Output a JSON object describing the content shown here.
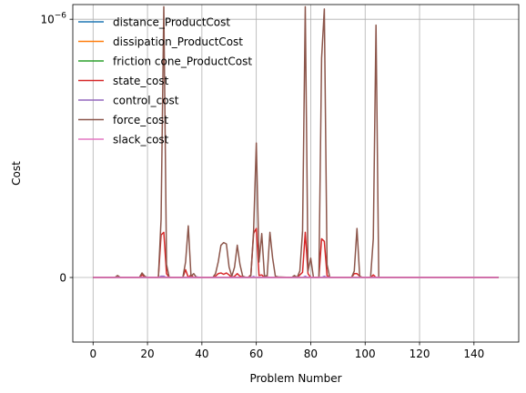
{
  "chart_data": {
    "type": "line",
    "xlabel": "Problem Number",
    "ylabel": "Cost",
    "xlim": [
      -7.45,
      156.45
    ],
    "ylim": [
      -5e-08,
      1.3e-06
    ],
    "yscale": "symlog",
    "linthresh": 1e-07,
    "grid": true,
    "legend_position": "top-left",
    "x_ticks": [
      0,
      20,
      40,
      60,
      80,
      100,
      120,
      140
    ],
    "x_tick_labels": [
      "0",
      "20",
      "40",
      "60",
      "80",
      "100",
      "120",
      "140"
    ],
    "y_ticks": [
      0,
      1e-06
    ],
    "y_tick_labels": [
      "0",
      "10^-6"
    ],
    "x_range": [
      0,
      149
    ],
    "series": [
      {
        "name": "distance_ProductCost",
        "color": "#1f77b4",
        "points": [
          [
            0,
            0
          ],
          [
            149,
            0
          ]
        ]
      },
      {
        "name": "dissipation_ProductCost",
        "color": "#ff7f0e",
        "points": [
          [
            0,
            0
          ],
          [
            149,
            0
          ]
        ]
      },
      {
        "name": "friction cone_ProductCost",
        "color": "#2ca02c",
        "points": [
          [
            0,
            0
          ],
          [
            149,
            0
          ]
        ]
      },
      {
        "name": "state_cost",
        "color": "#d62728",
        "points": [
          [
            0,
            0
          ],
          [
            8,
            0
          ],
          [
            9,
            6e-10
          ],
          [
            10,
            0
          ],
          [
            17,
            0
          ],
          [
            18,
            2e-09
          ],
          [
            19,
            5e-10
          ],
          [
            20,
            0
          ],
          [
            24,
            0
          ],
          [
            25,
            3.3e-08
          ],
          [
            26,
            3.5e-08
          ],
          [
            27,
            3e-09
          ],
          [
            28,
            0
          ],
          [
            33,
            0
          ],
          [
            34,
            6e-09
          ],
          [
            35,
            0
          ],
          [
            36,
            2e-09
          ],
          [
            37,
            0
          ],
          [
            44,
            0
          ],
          [
            45,
            1e-09
          ],
          [
            46,
            3e-09
          ],
          [
            47,
            3.5e-09
          ],
          [
            48,
            2.5e-09
          ],
          [
            49,
            3.5e-09
          ],
          [
            50,
            2e-09
          ],
          [
            51,
            0
          ],
          [
            52,
            1e-09
          ],
          [
            53,
            3e-09
          ],
          [
            54,
            1e-09
          ],
          [
            55,
            6e-10
          ],
          [
            56,
            2e-10
          ],
          [
            57,
            0
          ],
          [
            58,
            2e-09
          ],
          [
            59,
            3.4e-08
          ],
          [
            60,
            3.8e-08
          ],
          [
            61,
            1.5e-09
          ],
          [
            62,
            2e-09
          ],
          [
            63,
            0
          ],
          [
            64,
            5e-10
          ],
          [
            65,
            0
          ],
          [
            73,
            0
          ],
          [
            74,
            1e-09
          ],
          [
            75,
            0
          ],
          [
            76,
            2e-09
          ],
          [
            77,
            4e-09
          ],
          [
            78,
            3.5e-08
          ],
          [
            79,
            3e-09
          ],
          [
            80,
            0
          ],
          [
            83,
            0
          ],
          [
            84,
            3e-08
          ],
          [
            85,
            2.8e-08
          ],
          [
            86,
            1.5e-09
          ],
          [
            87,
            0
          ],
          [
            95,
            0
          ],
          [
            96,
            3e-09
          ],
          [
            97,
            3e-09
          ],
          [
            98,
            1e-09
          ],
          [
            99,
            0
          ],
          [
            102,
            0
          ],
          [
            103,
            2e-09
          ],
          [
            104,
            0
          ],
          [
            149,
            0
          ]
        ]
      },
      {
        "name": "control_cost",
        "color": "#9467bd",
        "points": [
          [
            0,
            0
          ],
          [
            24,
            0
          ],
          [
            25,
            1e-09
          ],
          [
            26,
            1e-09
          ],
          [
            27,
            0
          ],
          [
            37,
            0
          ],
          [
            38,
            6e-10
          ],
          [
            39,
            0
          ],
          [
            58,
            0
          ],
          [
            59,
            8e-10
          ],
          [
            60,
            0
          ],
          [
            77,
            0
          ],
          [
            78,
            1e-09
          ],
          [
            79,
            0
          ],
          [
            84,
            0
          ],
          [
            85,
            1e-09
          ],
          [
            86,
            0
          ],
          [
            149,
            0
          ]
        ]
      },
      {
        "name": "force_cost",
        "color": "#8c564b",
        "points": [
          [
            0,
            0
          ],
          [
            8,
            0
          ],
          [
            9,
            1.5e-09
          ],
          [
            10,
            0
          ],
          [
            17,
            0
          ],
          [
            18,
            3.5e-09
          ],
          [
            19,
            1e-09
          ],
          [
            20,
            0
          ],
          [
            24,
            0
          ],
          [
            25,
            4.5e-08
          ],
          [
            26,
            1.25e-06
          ],
          [
            27,
            1e-08
          ],
          [
            28,
            0
          ],
          [
            33,
            0
          ],
          [
            34,
            1.2e-08
          ],
          [
            35,
            4e-08
          ],
          [
            36,
            1e-09
          ],
          [
            37,
            3e-09
          ],
          [
            38,
            0
          ],
          [
            44,
            0
          ],
          [
            45,
            3e-09
          ],
          [
            46,
            1.2e-08
          ],
          [
            47,
            2.5e-08
          ],
          [
            48,
            2.7e-08
          ],
          [
            49,
            2.6e-08
          ],
          [
            50,
            8e-09
          ],
          [
            51,
            1e-09
          ],
          [
            52,
            8e-09
          ],
          [
            53,
            2.5e-08
          ],
          [
            54,
            1e-08
          ],
          [
            55,
            1e-09
          ],
          [
            56,
            2e-10
          ],
          [
            57,
            0
          ],
          [
            58,
            1.5e-09
          ],
          [
            59,
            3.6e-08
          ],
          [
            60,
            1.1e-07
          ],
          [
            61,
            1.2e-08
          ],
          [
            62,
            3.4e-08
          ],
          [
            63,
            1e-09
          ],
          [
            64,
            1.5e-09
          ],
          [
            65,
            3.5e-08
          ],
          [
            66,
            1.5e-08
          ],
          [
            67,
            1e-09
          ],
          [
            68,
            5e-10
          ],
          [
            73,
            0
          ],
          [
            74,
            1.5e-09
          ],
          [
            75,
            0
          ],
          [
            76,
            5e-09
          ],
          [
            77,
            3.6e-08
          ],
          [
            78,
            1.25e-06
          ],
          [
            79,
            5e-09
          ],
          [
            80,
            1.5e-08
          ],
          [
            81,
            0
          ],
          [
            83,
            0
          ],
          [
            84,
            5e-07
          ],
          [
            85,
            1.2e-06
          ],
          [
            86,
            1e-08
          ],
          [
            87,
            0
          ],
          [
            95,
            0
          ],
          [
            96,
            5e-09
          ],
          [
            97,
            3.8e-08
          ],
          [
            98,
            1e-09
          ],
          [
            99,
            0
          ],
          [
            102,
            0
          ],
          [
            103,
            3e-08
          ],
          [
            104,
            9e-07
          ],
          [
            105,
            0
          ],
          [
            149,
            0
          ]
        ]
      },
      {
        "name": "slack_cost",
        "color": "#e377c2",
        "points": [
          [
            0,
            0
          ],
          [
            149,
            0
          ]
        ]
      }
    ]
  }
}
